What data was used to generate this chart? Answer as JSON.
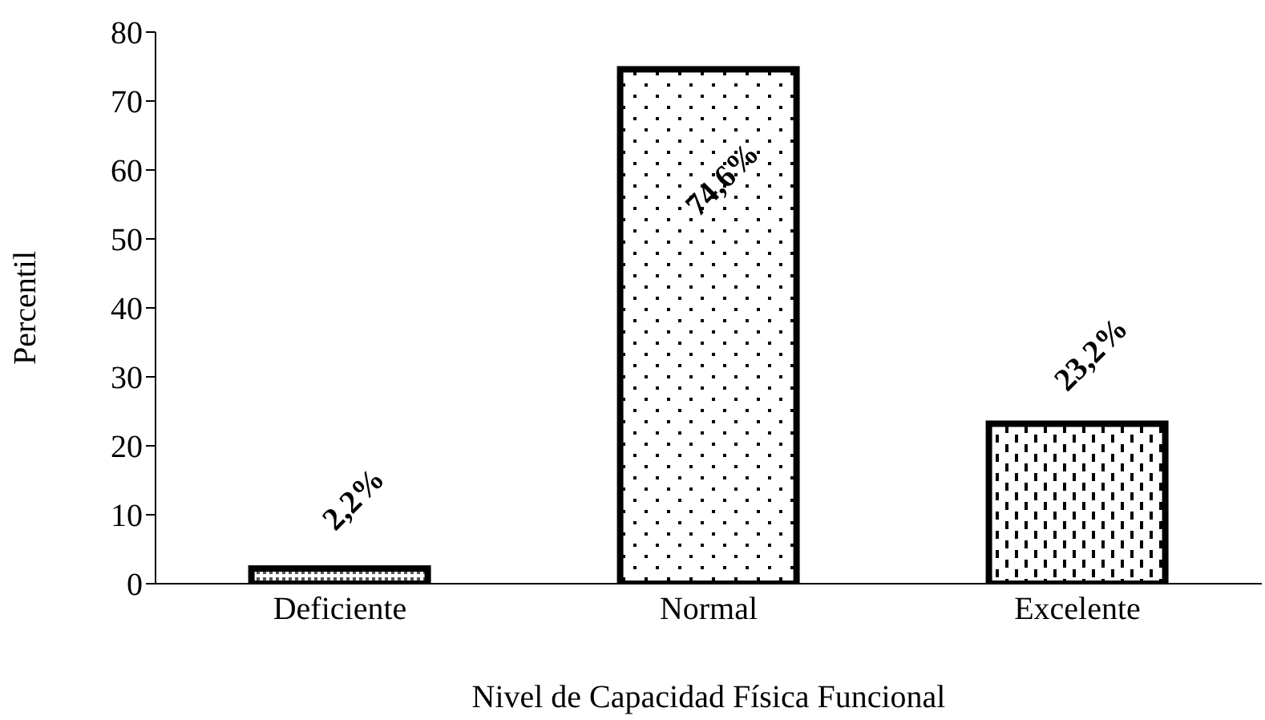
{
  "chart_data": {
    "type": "bar",
    "xlabel": "Nivel de Capacidad Física Funcional",
    "ylabel": "Percentil",
    "categories": [
      "Deficiente",
      "Normal",
      "Excelente"
    ],
    "values": [
      2.2,
      74.6,
      23.2
    ],
    "value_labels": [
      "2,2%",
      "74,6%",
      "23,2%"
    ],
    "color": "#000000",
    "ylim": [
      0,
      80
    ],
    "yticks": [
      0,
      10,
      20,
      30,
      40,
      50,
      60,
      70,
      80
    ],
    "grid": false,
    "legend": false
  }
}
